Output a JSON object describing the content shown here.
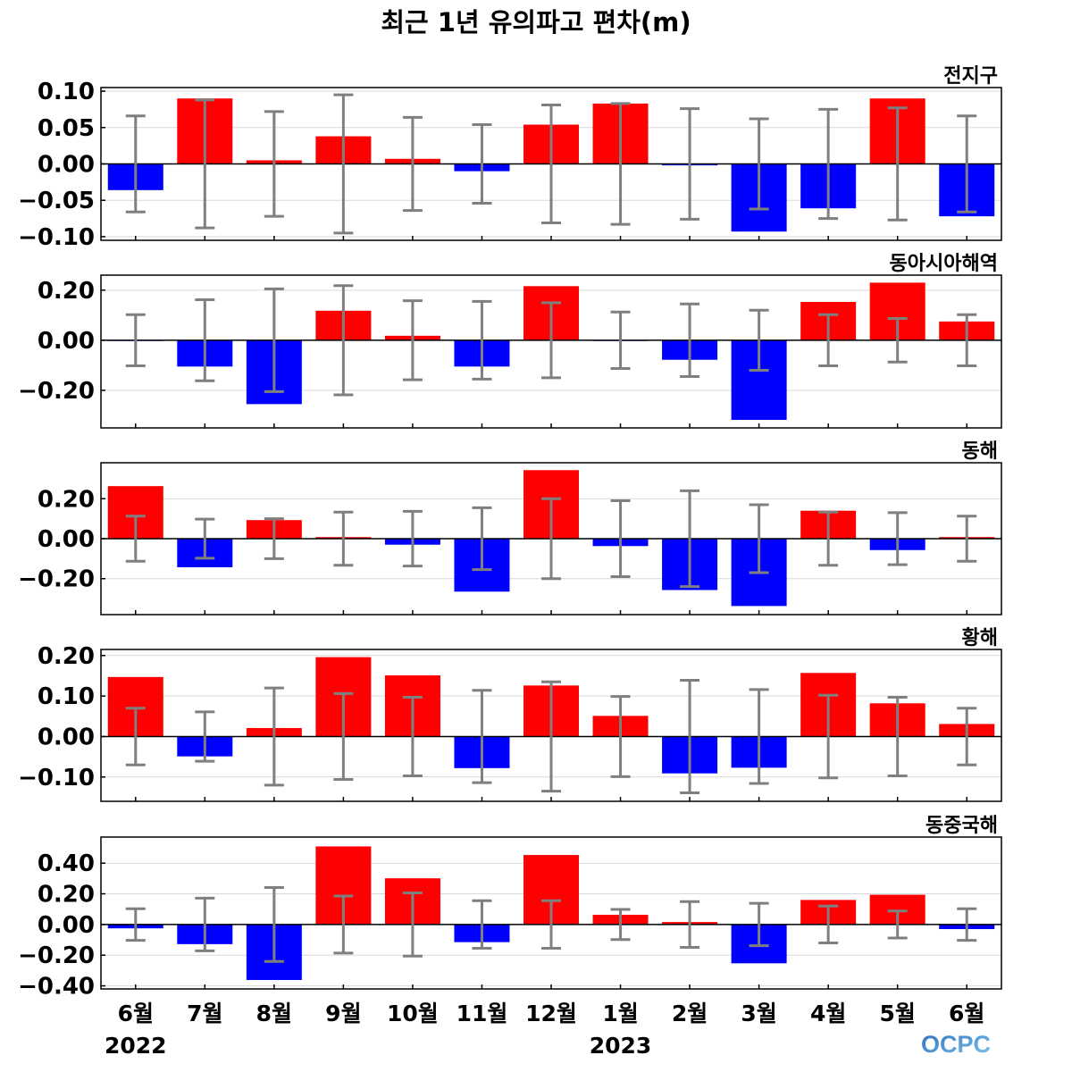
{
  "title": "최근 1년 유의파고 편차(m)",
  "logo_text": "OCPC",
  "years": [
    "2022",
    "2023"
  ],
  "colors": {
    "positive": "#ff0000",
    "negative": "#0000ff",
    "error_bar": "#7f7f7f",
    "zero_line": "#000000",
    "grid": "#d9d9d9"
  },
  "chart_data": {
    "type": "bar",
    "categories": [
      "6월",
      "7월",
      "8월",
      "9월",
      "10월",
      "11월",
      "12월",
      "1월",
      "2월",
      "3월",
      "4월",
      "5월",
      "6월"
    ],
    "panels": [
      {
        "name": "전지구",
        "ylim": [
          -0.105,
          0.105
        ],
        "yticks": [
          -0.1,
          -0.05,
          0.0,
          0.05,
          0.1
        ],
        "tick_labels": [
          "−0.10",
          "−0.05",
          "0.00",
          "0.05",
          "0.10"
        ],
        "values": [
          -0.036,
          0.09,
          0.005,
          0.038,
          0.007,
          -0.01,
          0.054,
          0.083,
          -0.002,
          -0.093,
          -0.061,
          0.09,
          -0.072
        ],
        "errors": [
          0.066,
          0.088,
          0.072,
          0.095,
          0.064,
          0.054,
          0.081,
          0.083,
          0.076,
          0.062,
          0.075,
          0.077,
          0.066
        ]
      },
      {
        "name": "동아시아해역",
        "ylim": [
          -0.35,
          0.26
        ],
        "yticks": [
          -0.2,
          0.0,
          0.2
        ],
        "tick_labels": [
          "−0.20",
          "0.00",
          "0.20"
        ],
        "values": [
          -0.003,
          -0.105,
          -0.255,
          0.118,
          0.018,
          -0.105,
          0.216,
          -0.003,
          -0.078,
          -0.318,
          0.153,
          0.23,
          0.075
        ],
        "errors": [
          0.102,
          0.162,
          0.205,
          0.218,
          0.158,
          0.155,
          0.15,
          0.113,
          0.145,
          0.12,
          0.102,
          0.087,
          0.102
        ]
      },
      {
        "name": "동해",
        "ylim": [
          -0.38,
          0.38
        ],
        "yticks": [
          -0.2,
          0.0,
          0.2
        ],
        "tick_labels": [
          "−0.20",
          "0.00",
          "0.20"
        ],
        "values": [
          0.263,
          -0.143,
          0.093,
          0.008,
          -0.03,
          -0.265,
          0.343,
          -0.037,
          -0.257,
          -0.337,
          0.14,
          -0.057,
          0.008
        ],
        "errors": [
          0.113,
          0.098,
          0.1,
          0.133,
          0.137,
          0.155,
          0.2,
          0.19,
          0.24,
          0.17,
          0.133,
          0.13,
          0.113
        ]
      },
      {
        "name": "황해",
        "ylim": [
          -0.16,
          0.215
        ],
        "yticks": [
          -0.1,
          0.0,
          0.1,
          0.2
        ],
        "tick_labels": [
          "−0.10",
          "0.00",
          "0.10",
          "0.20"
        ],
        "values": [
          0.147,
          -0.049,
          0.021,
          0.196,
          0.151,
          -0.078,
          0.126,
          0.051,
          -0.091,
          -0.077,
          0.157,
          0.082,
          0.031
        ],
        "errors": [
          0.07,
          0.061,
          0.12,
          0.106,
          0.097,
          0.114,
          0.135,
          0.099,
          0.139,
          0.116,
          0.102,
          0.097,
          0.07
        ]
      },
      {
        "name": "동중국해",
        "ylim": [
          -0.42,
          0.57
        ],
        "yticks": [
          -0.4,
          -0.2,
          0.0,
          0.2,
          0.4
        ],
        "tick_labels": [
          "−0.40",
          "−0.20",
          "0.00",
          "0.20",
          "0.40"
        ],
        "values": [
          -0.025,
          -0.128,
          -0.362,
          0.509,
          0.301,
          -0.115,
          0.453,
          0.063,
          0.016,
          -0.253,
          0.16,
          0.194,
          -0.03
        ],
        "errors": [
          0.103,
          0.172,
          0.241,
          0.186,
          0.206,
          0.155,
          0.155,
          0.098,
          0.149,
          0.138,
          0.12,
          0.088,
          0.103
        ]
      }
    ]
  }
}
